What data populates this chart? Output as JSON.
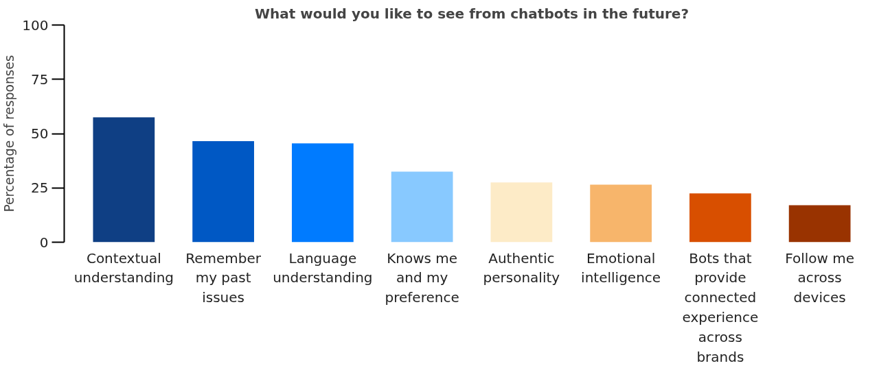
{
  "chart_data": {
    "type": "bar",
    "title": "What would you like to see from chatbots in the future?",
    "ylabel": "Percentage of responses",
    "categories": [
      "Contextual understanding",
      "Remember my past issues",
      "Language understanding",
      "Knows me and my preference",
      "Authentic personality",
      "Emotional intelligence",
      "Bots that provide connected experience across brands",
      "Follow me across devices"
    ],
    "values": [
      57.5,
      46.5,
      45.5,
      32.5,
      27.5,
      26.5,
      22.5,
      17
    ],
    "colors": [
      "#0f3f84",
      "#0058c4",
      "#007bff",
      "#88c9ff",
      "#fdebc7",
      "#f7b56b",
      "#d84f00",
      "#993300"
    ],
    "ylim": [
      0,
      100
    ],
    "yticks": [
      0,
      25,
      50,
      75,
      100
    ],
    "grid": false
  }
}
